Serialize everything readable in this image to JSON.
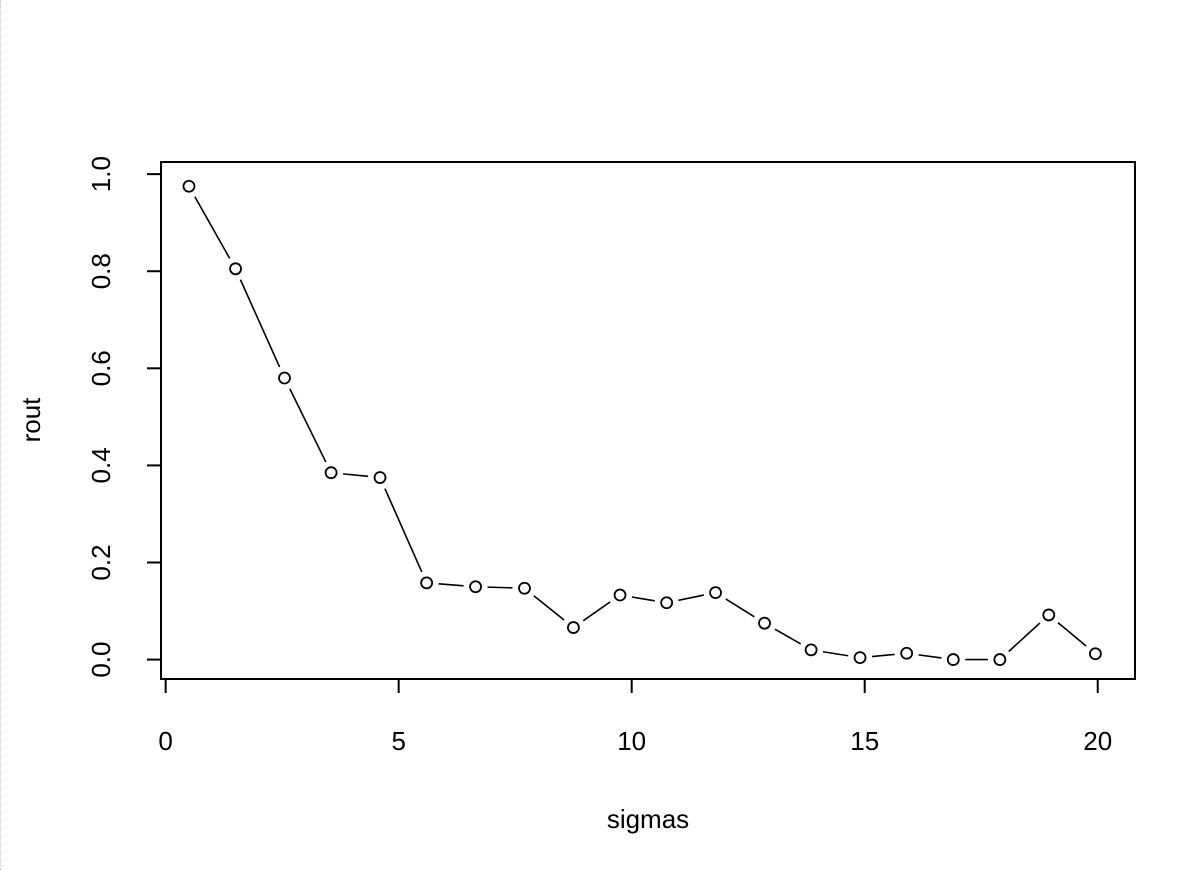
{
  "chart_data": {
    "type": "line",
    "title": "",
    "xlabel": "sigmas",
    "ylabel": "rout",
    "xlim": [
      -0.1,
      20.8
    ],
    "ylim": [
      -0.04,
      1.025
    ],
    "x_ticks": [
      0,
      5,
      10,
      15,
      20
    ],
    "x_tick_labels": [
      "0",
      "5",
      "10",
      "15",
      "20"
    ],
    "y_ticks": [
      0.0,
      0.2,
      0.4,
      0.6,
      0.8,
      1.0
    ],
    "y_tick_labels": [
      "0.0",
      "0.2",
      "0.4",
      "0.6",
      "0.8",
      "1.0"
    ],
    "grid": false,
    "marker": "open-circle",
    "line_style": "solid",
    "series": [
      {
        "x": [
          0.5,
          1.5,
          2.55,
          3.55,
          4.6,
          5.6,
          6.65,
          7.7,
          8.75,
          9.75,
          10.75,
          11.8,
          12.85,
          13.85,
          14.9,
          15.9,
          16.9,
          17.9,
          18.95,
          19.95
        ],
        "values": [
          0.975,
          0.805,
          0.58,
          0.385,
          0.375,
          0.158,
          0.15,
          0.147,
          0.066,
          0.133,
          0.117,
          0.138,
          0.075,
          0.02,
          0.004,
          0.013,
          0.0,
          0.0,
          0.092,
          0.012
        ]
      }
    ]
  }
}
